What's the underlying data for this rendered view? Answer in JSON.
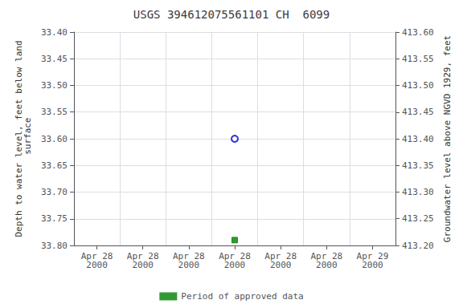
{
  "chart_data": {
    "type": "scatter",
    "title": "USGS 394612075561101 CH  6099",
    "categories": [
      "Apr 28\n2000",
      "Apr 28\n2000",
      "Apr 28\n2000",
      "Apr 28\n2000",
      "Apr 28\n2000",
      "Apr 28\n2000",
      "Apr 29\n2000"
    ],
    "ylabel": "Depth to water level, feet below land\n surface",
    "y2label": "Groundwater level above NGVD 1929, feet",
    "series": [
      {
        "color": "#0000cc",
        "marker": "open_circle",
        "values": [
          null,
          null,
          null,
          33.6,
          null,
          null,
          null
        ]
      },
      {
        "name": "Period of approved data",
        "color": "#008000",
        "marker": "square",
        "values": [
          null,
          null,
          null,
          33.79,
          null,
          null,
          null
        ]
      }
    ],
    "ylim": [
      33.8,
      33.4
    ],
    "yticks": [
      {
        "value": 33.4,
        "label": "33.40"
      },
      33.45,
      {
        "value": 33.5,
        "label": "33.50"
      },
      33.55,
      {
        "value": 33.6,
        "label": "33.60"
      },
      33.65,
      {
        "value": 33.7,
        "label": "33.70"
      },
      33.75,
      {
        "value": 33.8,
        "label": "33.80"
      }
    ],
    "y2lim": [
      413.2,
      413.6
    ],
    "y2ticks": [
      {
        "value": 413.2,
        "label": "413.20"
      },
      413.25,
      {
        "value": 413.3,
        "label": "413.30"
      },
      413.35,
      {
        "value": 413.4,
        "label": "413.40"
      },
      413.45,
      {
        "value": 413.5,
        "label": "413.50"
      },
      413.55,
      {
        "value": 413.6,
        "label": "413.60"
      }
    ],
    "grid": true,
    "legend": "bottom"
  }
}
